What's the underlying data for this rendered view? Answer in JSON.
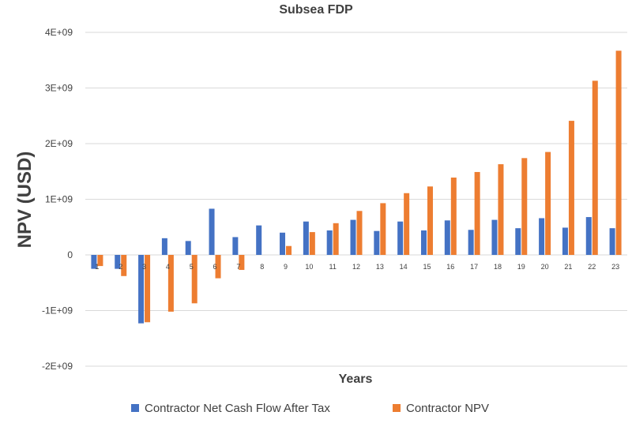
{
  "chart_data": {
    "type": "bar",
    "title": "Subsea FDP",
    "xlabel": "Years",
    "ylabel": "NPV (USD)",
    "ylim": [
      -2000000000,
      4000000000
    ],
    "yticks": [
      {
        "value": 4000000000,
        "label": "4E+09"
      },
      {
        "value": 3000000000,
        "label": "3E+09"
      },
      {
        "value": 2000000000,
        "label": "2E+09"
      },
      {
        "value": 1000000000,
        "label": "1E+09"
      },
      {
        "value": 0,
        "label": "0"
      },
      {
        "value": -1000000000,
        "label": "-1E+09"
      },
      {
        "value": -2000000000,
        "label": "-2E+09"
      }
    ],
    "categories": [
      "1",
      "2",
      "3",
      "4",
      "5",
      "6",
      "7",
      "8",
      "9",
      "10",
      "11",
      "12",
      "13",
      "14",
      "15",
      "16",
      "17",
      "18",
      "19",
      "20",
      "21",
      "22",
      "23"
    ],
    "series": [
      {
        "name": "Contractor Net Cash Flow After Tax",
        "color": "#4472C4",
        "values": [
          -250000000,
          -250000000,
          -1230000000,
          300000000,
          250000000,
          830000000,
          320000000,
          530000000,
          400000000,
          600000000,
          440000000,
          630000000,
          430000000,
          600000000,
          440000000,
          620000000,
          450000000,
          630000000,
          480000000,
          660000000,
          490000000,
          680000000,
          480000000
        ]
      },
      {
        "name": "Contractor NPV",
        "color": "#ED7D31",
        "values": [
          -200000000,
          -380000000,
          -1210000000,
          -1020000000,
          -870000000,
          -420000000,
          -270000000,
          0,
          160000000,
          410000000,
          570000000,
          790000000,
          930000000,
          1110000000,
          1230000000,
          1390000000,
          1490000000,
          1630000000,
          1740000000,
          1850000000,
          2410000000,
          3130000000,
          3670000000
        ]
      }
    ]
  }
}
